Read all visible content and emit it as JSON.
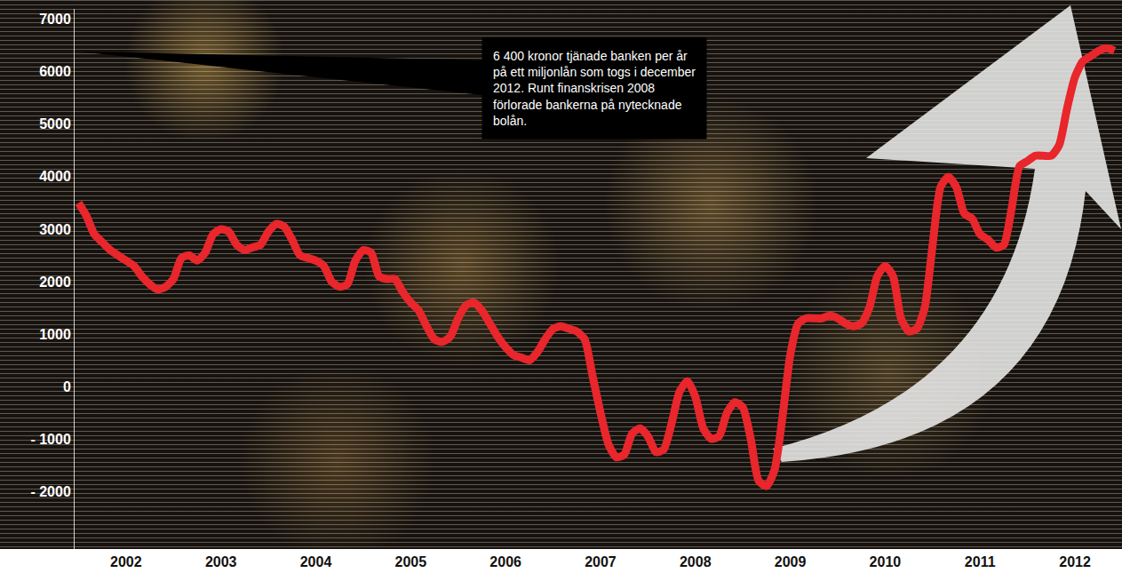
{
  "chart_data": {
    "type": "line",
    "categories": [
      null,
      null,
      null,
      null,
      null,
      null,
      "2002",
      null,
      null,
      null,
      null,
      null,
      null,
      null,
      null,
      null,
      null,
      null,
      "2003",
      null,
      null,
      null,
      null,
      null,
      null,
      null,
      null,
      null,
      null,
      null,
      "2004",
      null,
      null,
      null,
      null,
      null,
      null,
      null,
      null,
      null,
      null,
      null,
      "2005",
      null,
      null,
      null,
      null,
      null,
      null,
      null,
      null,
      null,
      null,
      null,
      "2006",
      null,
      null,
      null,
      null,
      null,
      null,
      null,
      null,
      null,
      null,
      null,
      "2007",
      null,
      null,
      null,
      null,
      null,
      null,
      null,
      null,
      null,
      null,
      null,
      "2008",
      null,
      null,
      null,
      null,
      null,
      null,
      null,
      null,
      null,
      null,
      null,
      "2009",
      null,
      null,
      null,
      null,
      null,
      null,
      null,
      null,
      null,
      null,
      null,
      "2010",
      null,
      null,
      null,
      null,
      null,
      null,
      null,
      null,
      null,
      null,
      null,
      "2011",
      null,
      null,
      null,
      null,
      null,
      null,
      null,
      null,
      null,
      null,
      null,
      "2012",
      null,
      null,
      null,
      null,
      null
    ],
    "values": [
      3500,
      3250,
      2900,
      2750,
      2600,
      2500,
      2400,
      2300,
      2100,
      1950,
      1850,
      1900,
      2050,
      2450,
      2500,
      2400,
      2550,
      2900,
      3000,
      2950,
      2700,
      2600,
      2650,
      2700,
      2950,
      3100,
      3050,
      2800,
      2500,
      2450,
      2400,
      2300,
      2000,
      1900,
      1950,
      2400,
      2600,
      2550,
      2100,
      2050,
      2050,
      1800,
      1600,
      1450,
      1150,
      900,
      850,
      950,
      1300,
      1550,
      1600,
      1450,
      1200,
      950,
      750,
      600,
      550,
      500,
      650,
      900,
      1100,
      1150,
      1100,
      1050,
      900,
      200,
      -500,
      -1100,
      -1350,
      -1300,
      -900,
      -800,
      -950,
      -1250,
      -1200,
      -700,
      -100,
      100,
      -200,
      -800,
      -1000,
      -950,
      -500,
      -300,
      -400,
      -1000,
      -1800,
      -1900,
      -1600,
      -600,
      600,
      1200,
      1300,
      1300,
      1300,
      1350,
      1300,
      1200,
      1150,
      1200,
      1500,
      2100,
      2300,
      2100,
      1300,
      1050,
      1100,
      1500,
      2700,
      3800,
      4000,
      3800,
      3300,
      3200,
      2900,
      2800,
      2650,
      2700,
      3400,
      4200,
      4300,
      4400,
      4400,
      4400,
      4600,
      5300,
      5900,
      6200,
      6300,
      6400,
      6450,
      6400
    ],
    "color": "#e8262b",
    "ylim": [
      -3100,
      7200
    ],
    "yticks": [
      {
        "value": -2000,
        "label": "- 2000"
      },
      {
        "value": -1000,
        "label": "- 1000"
      },
      0,
      1000,
      2000,
      3000,
      4000,
      5000,
      6000,
      7000
    ],
    "grid": false,
    "annotation": "6 400 kronor tjänade banken per år på ett miljonlån som togs i december 2012. Runt finanskrisen 2008 förlorade bankerna på nytecknade bolån."
  }
}
